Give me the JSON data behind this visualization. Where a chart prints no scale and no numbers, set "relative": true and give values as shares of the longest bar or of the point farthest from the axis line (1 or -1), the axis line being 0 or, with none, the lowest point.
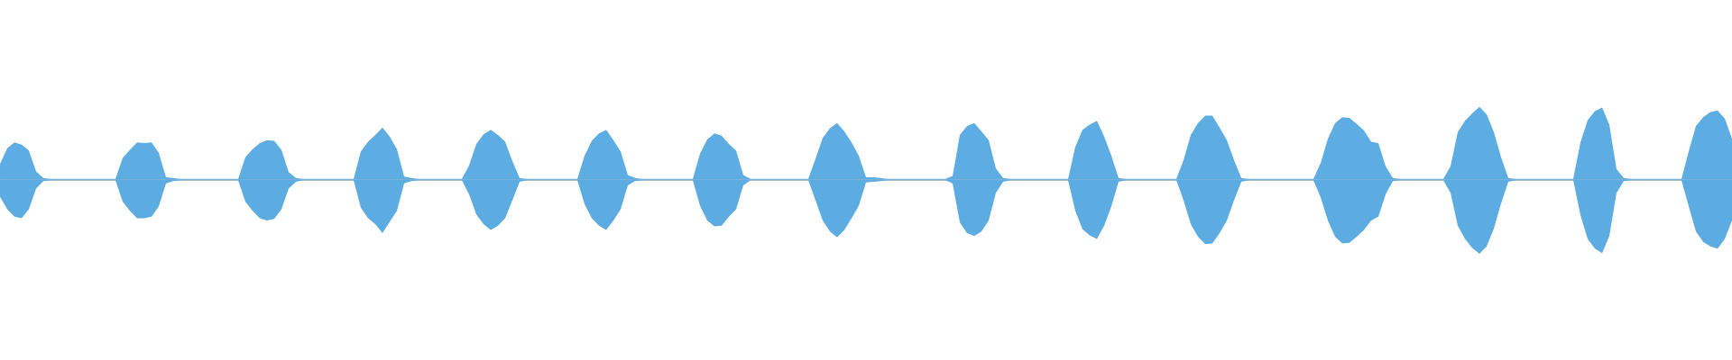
{
  "chart_data": {
    "type": "area",
    "relative": true,
    "tick_labels": false,
    "categories": [
      null,
      null,
      null,
      null,
      null,
      null,
      null,
      null,
      null,
      null,
      null,
      null,
      null,
      null,
      null,
      null,
      null,
      null,
      null,
      null,
      null,
      null,
      null,
      null,
      null,
      null,
      null,
      null,
      null,
      null,
      null,
      null,
      null,
      null,
      null,
      null,
      null,
      null,
      null,
      null,
      null,
      null,
      null,
      null,
      null,
      null,
      null,
      null,
      null,
      null,
      null,
      null,
      null,
      null,
      null,
      null,
      null,
      null,
      null,
      null,
      null,
      null,
      null,
      null,
      null,
      null,
      null,
      null,
      null,
      null,
      null,
      null,
      null,
      null,
      null,
      null,
      null,
      null,
      null,
      null,
      null,
      null,
      null,
      null,
      null,
      null,
      null,
      null,
      null,
      null,
      null,
      null,
      null,
      null,
      null,
      null,
      null,
      null,
      null,
      null,
      null,
      null,
      null,
      null,
      null,
      null,
      null,
      null,
      null,
      null,
      null,
      null,
      null,
      null,
      null,
      null,
      null,
      null,
      null,
      null,
      null,
      null,
      null,
      null,
      null,
      null,
      null,
      null,
      null,
      null,
      null,
      null,
      null,
      null,
      null,
      null,
      null,
      null,
      null,
      null,
      null,
      null,
      null,
      null,
      null,
      null,
      null,
      null,
      null,
      null,
      null,
      null,
      null,
      null,
      null,
      null,
      null,
      null,
      null,
      null,
      null,
      null,
      null,
      null,
      null,
      null,
      null,
      null,
      null,
      null,
      null,
      null,
      null,
      null,
      null,
      null,
      null,
      null,
      null,
      null,
      null,
      null,
      null,
      null,
      null,
      null,
      null,
      null,
      null,
      null,
      null,
      null,
      null,
      null,
      null,
      null,
      null,
      null,
      null,
      null,
      null,
      null,
      null,
      null,
      null,
      null,
      null,
      null,
      null,
      null,
      null,
      null,
      null,
      null,
      null,
      null,
      null,
      null,
      null,
      null,
      null,
      null,
      null,
      null,
      null,
      null,
      null,
      null,
      null,
      null,
      null,
      null,
      null,
      null,
      null,
      null,
      null,
      null,
      null,
      null,
      null
    ],
    "series": [
      {
        "color": "#5dade2",
        "values": [
          0.21,
          0.42,
          0.5,
          0.47,
          0.39,
          0.11,
          0.02,
          0.01,
          0.01,
          0.01,
          0.01,
          0.01,
          0.01,
          0.01,
          0.01,
          0.01,
          0.01,
          0.29,
          0.4,
          0.5,
          0.49,
          0.5,
          0.36,
          0.03,
          0.02,
          0.01,
          0.01,
          0.01,
          0.01,
          0.01,
          0.01,
          0.01,
          0.01,
          0.01,
          0.3,
          0.41,
          0.49,
          0.53,
          0.52,
          0.4,
          0.1,
          0.02,
          0.01,
          0.01,
          0.01,
          0.01,
          0.01,
          0.01,
          0.01,
          0.01,
          0.38,
          0.51,
          0.6,
          0.7,
          0.58,
          0.41,
          0.04,
          0.02,
          0.01,
          0.01,
          0.01,
          0.01,
          0.01,
          0.01,
          0.01,
          0.19,
          0.48,
          0.61,
          0.67,
          0.6,
          0.51,
          0.25,
          0.02,
          0.01,
          0.01,
          0.01,
          0.01,
          0.01,
          0.01,
          0.01,
          0.01,
          0.32,
          0.52,
          0.62,
          0.67,
          0.53,
          0.38,
          0.06,
          0.02,
          0.01,
          0.01,
          0.01,
          0.01,
          0.01,
          0.01,
          0.01,
          0.01,
          0.35,
          0.54,
          0.62,
          0.59,
          0.48,
          0.39,
          0.06,
          0.01,
          0.01,
          0.01,
          0.01,
          0.01,
          0.01,
          0.01,
          0.01,
          0.01,
          0.28,
          0.56,
          0.69,
          0.76,
          0.65,
          0.5,
          0.32,
          0.03,
          0.03,
          0.02,
          0.01,
          0.01,
          0.01,
          0.01,
          0.01,
          0.01,
          0.01,
          0.01,
          0.01,
          0.05,
          0.6,
          0.72,
          0.76,
          0.65,
          0.53,
          0.15,
          0.02,
          0.01,
          0.01,
          0.01,
          0.01,
          0.01,
          0.01,
          0.01,
          0.01,
          0.01,
          0.44,
          0.67,
          0.74,
          0.79,
          0.58,
          0.32,
          0.02,
          0.01,
          0.01,
          0.01,
          0.01,
          0.01,
          0.01,
          0.01,
          0.01,
          0.26,
          0.6,
          0.76,
          0.86,
          0.86,
          0.7,
          0.53,
          0.26,
          0.02,
          0.01,
          0.01,
          0.01,
          0.01,
          0.01,
          0.01,
          0.01,
          0.01,
          0.01,
          0.01,
          0.22,
          0.55,
          0.76,
          0.84,
          0.83,
          0.75,
          0.66,
          0.51,
          0.49,
          0.18,
          0.02,
          0.01,
          0.01,
          0.01,
          0.01,
          0.01,
          0.01,
          0.01,
          0.18,
          0.64,
          0.79,
          0.89,
          0.98,
          0.88,
          0.64,
          0.3,
          0.02,
          0.01,
          0.01,
          0.01,
          0.01,
          0.01,
          0.01,
          0.01,
          0.01,
          0.01,
          0.5,
          0.8,
          0.92,
          0.97,
          0.74,
          0.14,
          0.02,
          0.01,
          0.01,
          0.01,
          0.01,
          0.01,
          0.01,
          0.01,
          0.01,
          0.38,
          0.72,
          0.84,
          0.91,
          0.93,
          0.82,
          0.55
        ]
      },
      {
        "color": "#5cace1",
        "values": [
          -0.23,
          -0.4,
          -0.5,
          -0.52,
          -0.4,
          -0.12,
          -0.02,
          -0.01,
          -0.01,
          -0.01,
          -0.01,
          -0.01,
          -0.01,
          -0.01,
          -0.01,
          -0.01,
          -0.01,
          -0.3,
          -0.42,
          -0.52,
          -0.52,
          -0.5,
          -0.36,
          -0.05,
          -0.02,
          -0.01,
          -0.01,
          -0.01,
          -0.01,
          -0.01,
          -0.01,
          -0.01,
          -0.01,
          -0.01,
          -0.3,
          -0.42,
          -0.52,
          -0.55,
          -0.53,
          -0.4,
          -0.12,
          -0.03,
          -0.01,
          -0.01,
          -0.01,
          -0.01,
          -0.01,
          -0.01,
          -0.01,
          -0.01,
          -0.38,
          -0.52,
          -0.6,
          -0.72,
          -0.57,
          -0.42,
          -0.05,
          -0.02,
          -0.01,
          -0.01,
          -0.01,
          -0.01,
          -0.01,
          -0.01,
          -0.01,
          -0.2,
          -0.47,
          -0.6,
          -0.68,
          -0.62,
          -0.52,
          -0.28,
          -0.03,
          -0.01,
          -0.01,
          -0.01,
          -0.01,
          -0.01,
          -0.01,
          -0.01,
          -0.01,
          -0.33,
          -0.52,
          -0.62,
          -0.68,
          -0.55,
          -0.4,
          -0.08,
          -0.02,
          -0.01,
          -0.01,
          -0.01,
          -0.01,
          -0.01,
          -0.01,
          -0.01,
          -0.01,
          -0.35,
          -0.55,
          -0.63,
          -0.62,
          -0.5,
          -0.4,
          -0.08,
          -0.01,
          -0.01,
          -0.01,
          -0.01,
          -0.01,
          -0.01,
          -0.01,
          -0.01,
          -0.01,
          -0.28,
          -0.55,
          -0.7,
          -0.78,
          -0.68,
          -0.52,
          -0.35,
          -0.04,
          -0.03,
          -0.02,
          -0.01,
          -0.01,
          -0.01,
          -0.01,
          -0.01,
          -0.01,
          -0.01,
          -0.01,
          -0.01,
          -0.05,
          -0.58,
          -0.72,
          -0.76,
          -0.7,
          -0.55,
          -0.18,
          -0.03,
          -0.01,
          -0.01,
          -0.01,
          -0.01,
          -0.01,
          -0.01,
          -0.01,
          -0.01,
          -0.01,
          -0.42,
          -0.67,
          -0.75,
          -0.8,
          -0.62,
          -0.36,
          -0.03,
          -0.01,
          -0.01,
          -0.01,
          -0.01,
          -0.01,
          -0.01,
          -0.01,
          -0.01,
          -0.28,
          -0.6,
          -0.77,
          -0.87,
          -0.86,
          -0.72,
          -0.55,
          -0.28,
          -0.03,
          -0.01,
          -0.01,
          -0.01,
          -0.01,
          -0.01,
          -0.01,
          -0.01,
          -0.01,
          -0.01,
          -0.01,
          -0.24,
          -0.55,
          -0.77,
          -0.86,
          -0.85,
          -0.77,
          -0.68,
          -0.55,
          -0.5,
          -0.2,
          -0.02,
          -0.01,
          -0.01,
          -0.01,
          -0.01,
          -0.01,
          -0.01,
          -0.01,
          -0.18,
          -0.62,
          -0.8,
          -0.92,
          -1,
          -0.9,
          -0.66,
          -0.32,
          -0.03,
          -0.01,
          -0.01,
          -0.01,
          -0.01,
          -0.01,
          -0.01,
          -0.01,
          -0.01,
          -0.01,
          -0.48,
          -0.8,
          -0.93,
          -0.99,
          -0.76,
          -0.18,
          -0.02,
          -0.01,
          -0.01,
          -0.01,
          -0.01,
          -0.01,
          -0.01,
          -0.01,
          -0.01,
          -0.36,
          -0.7,
          -0.84,
          -0.9,
          -0.93,
          -0.8,
          -0.55
        ]
      }
    ]
  }
}
